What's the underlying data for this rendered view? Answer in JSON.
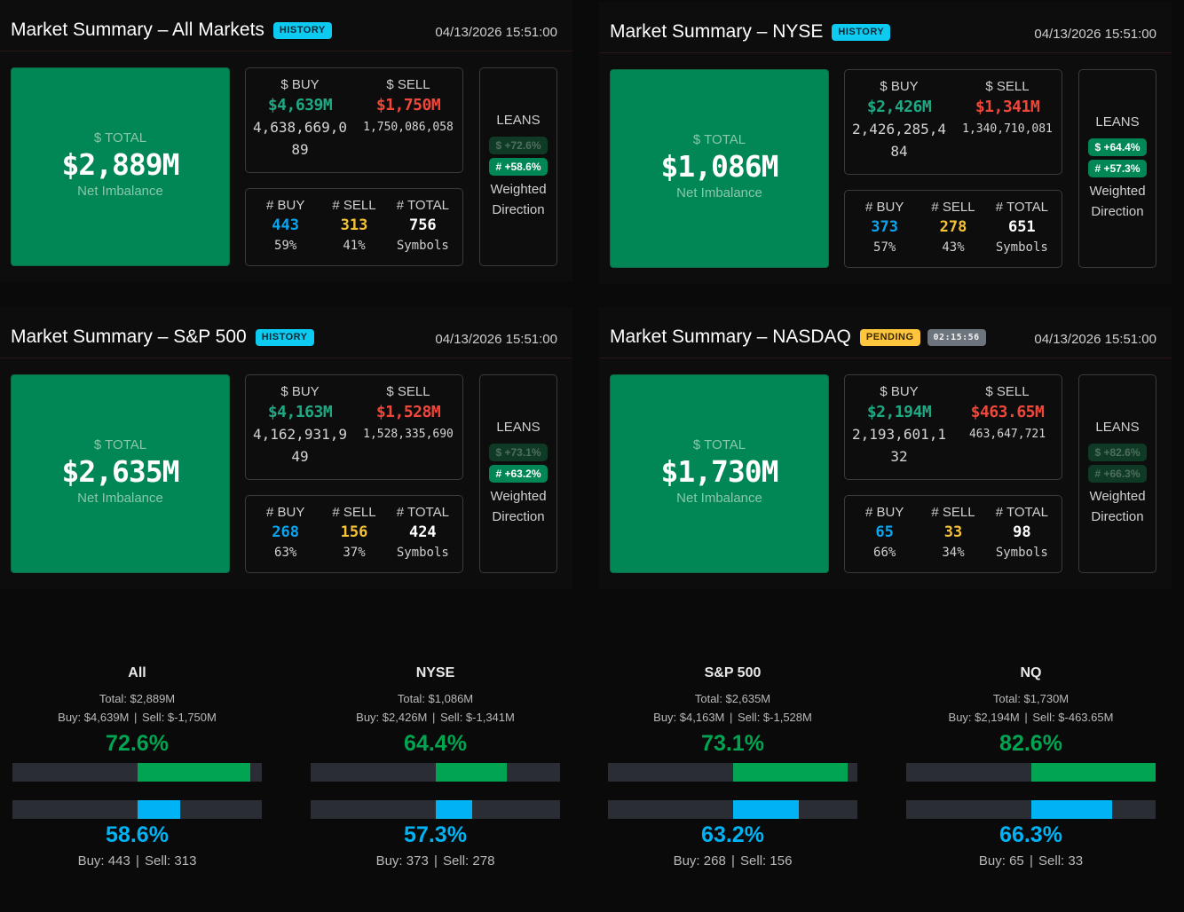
{
  "colors": {
    "background": "#0a0a0a",
    "total_green": "#008755",
    "buy_dollar": "#1ea883",
    "sell_dollar": "#f0473b",
    "buy_count": "#0aa5f0",
    "sell_count": "#f5c236",
    "gauge_green": "#00a451",
    "gauge_blue": "#00b3f5",
    "history_badge": "#0dcaf0",
    "pending_badge": "#ffc53d",
    "timer_badge": "#6c757d"
  },
  "labels": {
    "dollar_total": "$ TOTAL",
    "net_imbalance": "Net Imbalance",
    "dollar_buy": "$ BUY",
    "dollar_sell": "$ SELL",
    "count_buy": "# BUY",
    "count_sell": "# SELL",
    "count_total": "# TOTAL",
    "symbols": "Symbols",
    "leans": "LEANS",
    "weighted": "Weighted",
    "direction": "Direction"
  },
  "panels": [
    {
      "title": "Market Summary – All Markets",
      "badge": "HISTORY",
      "timestamp": "04/13/2026 15:51:00",
      "total": "$2,889M",
      "buy_short": "$4,639M",
      "buy_raw": "4,638,669,089",
      "sell_short": "$1,750M",
      "sell_raw": "1,750,086,058",
      "buy_count": "443",
      "buy_pct": "59%",
      "sell_count": "313",
      "sell_pct": "41%",
      "total_count": "756",
      "lean_dollar": "$ +72.6%",
      "lean_dollar_active": false,
      "lean_count": "# +58.6%",
      "lean_count_active": true
    },
    {
      "title": "Market Summary – NYSE",
      "badge": "HISTORY",
      "timestamp": "04/13/2026 15:51:00",
      "total": "$1,086M",
      "buy_short": "$2,426M",
      "buy_raw": "2,426,285,484",
      "sell_short": "$1,341M",
      "sell_raw": "1,340,710,081",
      "buy_count": "373",
      "buy_pct": "57%",
      "sell_count": "278",
      "sell_pct": "43%",
      "total_count": "651",
      "lean_dollar": "$ +64.4%",
      "lean_dollar_active": true,
      "lean_count": "# +57.3%",
      "lean_count_active": true
    },
    {
      "title": "Market Summary – S&P 500",
      "badge": "HISTORY",
      "timestamp": "04/13/2026 15:51:00",
      "total": "$2,635M",
      "buy_short": "$4,163M",
      "buy_raw": "4,162,931,949",
      "sell_short": "$1,528M",
      "sell_raw": "1,528,335,690",
      "buy_count": "268",
      "buy_pct": "63%",
      "sell_count": "156",
      "sell_pct": "37%",
      "total_count": "424",
      "lean_dollar": "$ +73.1%",
      "lean_dollar_active": false,
      "lean_count": "# +63.2%",
      "lean_count_active": true
    },
    {
      "title": "Market Summary – NASDAQ",
      "badge": "PENDING",
      "timer": "02:15:56",
      "timestamp": "04/13/2026 15:51:00",
      "total": "$1,730M",
      "buy_short": "$2,194M",
      "buy_raw": "2,193,601,132",
      "sell_short": "$463.65M",
      "sell_raw": "463,647,721",
      "buy_count": "65",
      "buy_pct": "66%",
      "sell_count": "33",
      "sell_pct": "34%",
      "total_count": "98",
      "lean_dollar": "$ +82.6%",
      "lean_dollar_active": false,
      "lean_count": "# +66.3%",
      "lean_count_active": false
    }
  ],
  "gauges": [
    {
      "name": "All",
      "total": "Total: $2,889M",
      "buy": "Buy: $4,639M",
      "sell": "Sell: $-1,750M",
      "dollar_pct_label": "72.6%",
      "dollar_pct": 72.6,
      "count_pct_label": "58.6%",
      "count_pct": 58.6,
      "buy_count": "Buy: 443",
      "sell_count": "Sell: 313"
    },
    {
      "name": "NYSE",
      "total": "Total: $1,086M",
      "buy": "Buy: $2,426M",
      "sell": "Sell: $-1,341M",
      "dollar_pct_label": "64.4%",
      "dollar_pct": 64.4,
      "count_pct_label": "57.3%",
      "count_pct": 57.3,
      "buy_count": "Buy: 373",
      "sell_count": "Sell: 278"
    },
    {
      "name": "S&P 500",
      "total": "Total: $2,635M",
      "buy": "Buy: $4,163M",
      "sell": "Sell: $-1,528M",
      "dollar_pct_label": "73.1%",
      "dollar_pct": 73.1,
      "count_pct_label": "63.2%",
      "count_pct": 63.2,
      "buy_count": "Buy: 268",
      "sell_count": "Sell: 156"
    },
    {
      "name": "NQ",
      "total": "Total: $1,730M",
      "buy": "Buy: $2,194M",
      "sell": "Sell: $-463.65M",
      "dollar_pct_label": "82.6%",
      "dollar_pct": 82.6,
      "count_pct_label": "66.3%",
      "count_pct": 66.3,
      "buy_count": "Buy: 65",
      "sell_count": "Sell: 33"
    }
  ],
  "gauge_separator": "|"
}
